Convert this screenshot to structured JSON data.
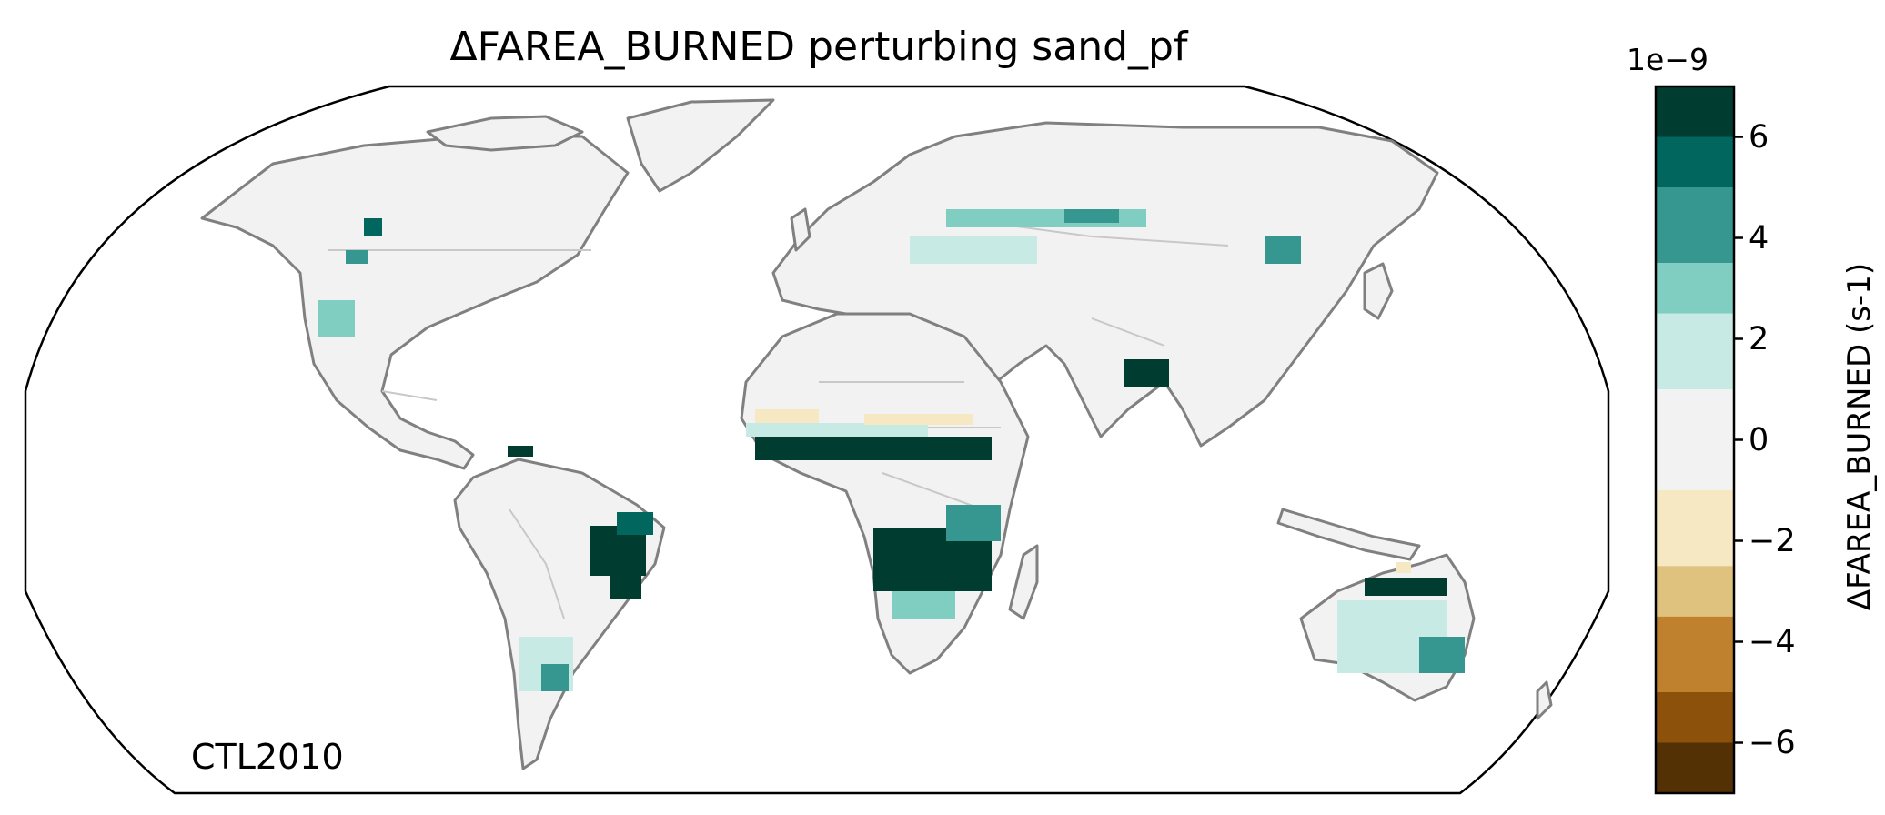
{
  "title": "ΔFAREA_BURNED perturbing sand_pf",
  "experiment_label": "CTL2010",
  "colorbar": {
    "label": "ΔFAREA_BURNED (s-1)",
    "exponent": "1e−9",
    "ticks": [
      {
        "value": 6,
        "label": "6"
      },
      {
        "value": 4,
        "label": "4"
      },
      {
        "value": 2,
        "label": "2"
      },
      {
        "value": 0,
        "label": "0"
      },
      {
        "value": -2,
        "label": "−2"
      },
      {
        "value": -4,
        "label": "−4"
      },
      {
        "value": -6,
        "label": "−6"
      }
    ],
    "bins": [
      {
        "from": 6,
        "to": 7,
        "color": "#003d30"
      },
      {
        "from": 5,
        "to": 6,
        "color": "#01665e"
      },
      {
        "from": 3.5,
        "to": 5,
        "color": "#35978f"
      },
      {
        "from": 2.5,
        "to": 3.5,
        "color": "#80cdc1"
      },
      {
        "from": 1,
        "to": 2.5,
        "color": "#c7eae5"
      },
      {
        "from": -1,
        "to": 1,
        "color": "#f2f2f2"
      },
      {
        "from": -2.5,
        "to": -1,
        "color": "#f6e8c3"
      },
      {
        "from": -3.5,
        "to": -2.5,
        "color": "#dfc27d"
      },
      {
        "from": -5,
        "to": -3.5,
        "color": "#bf812d"
      },
      {
        "from": -6,
        "to": -5,
        "color": "#8c510a"
      },
      {
        "from": -7,
        "to": -6,
        "color": "#543005"
      }
    ],
    "range": [
      -7,
      7
    ]
  },
  "colors": {
    "land_background": "#f2f2f2",
    "coastline": "#808080",
    "borders": "#c8c8c8"
  }
}
